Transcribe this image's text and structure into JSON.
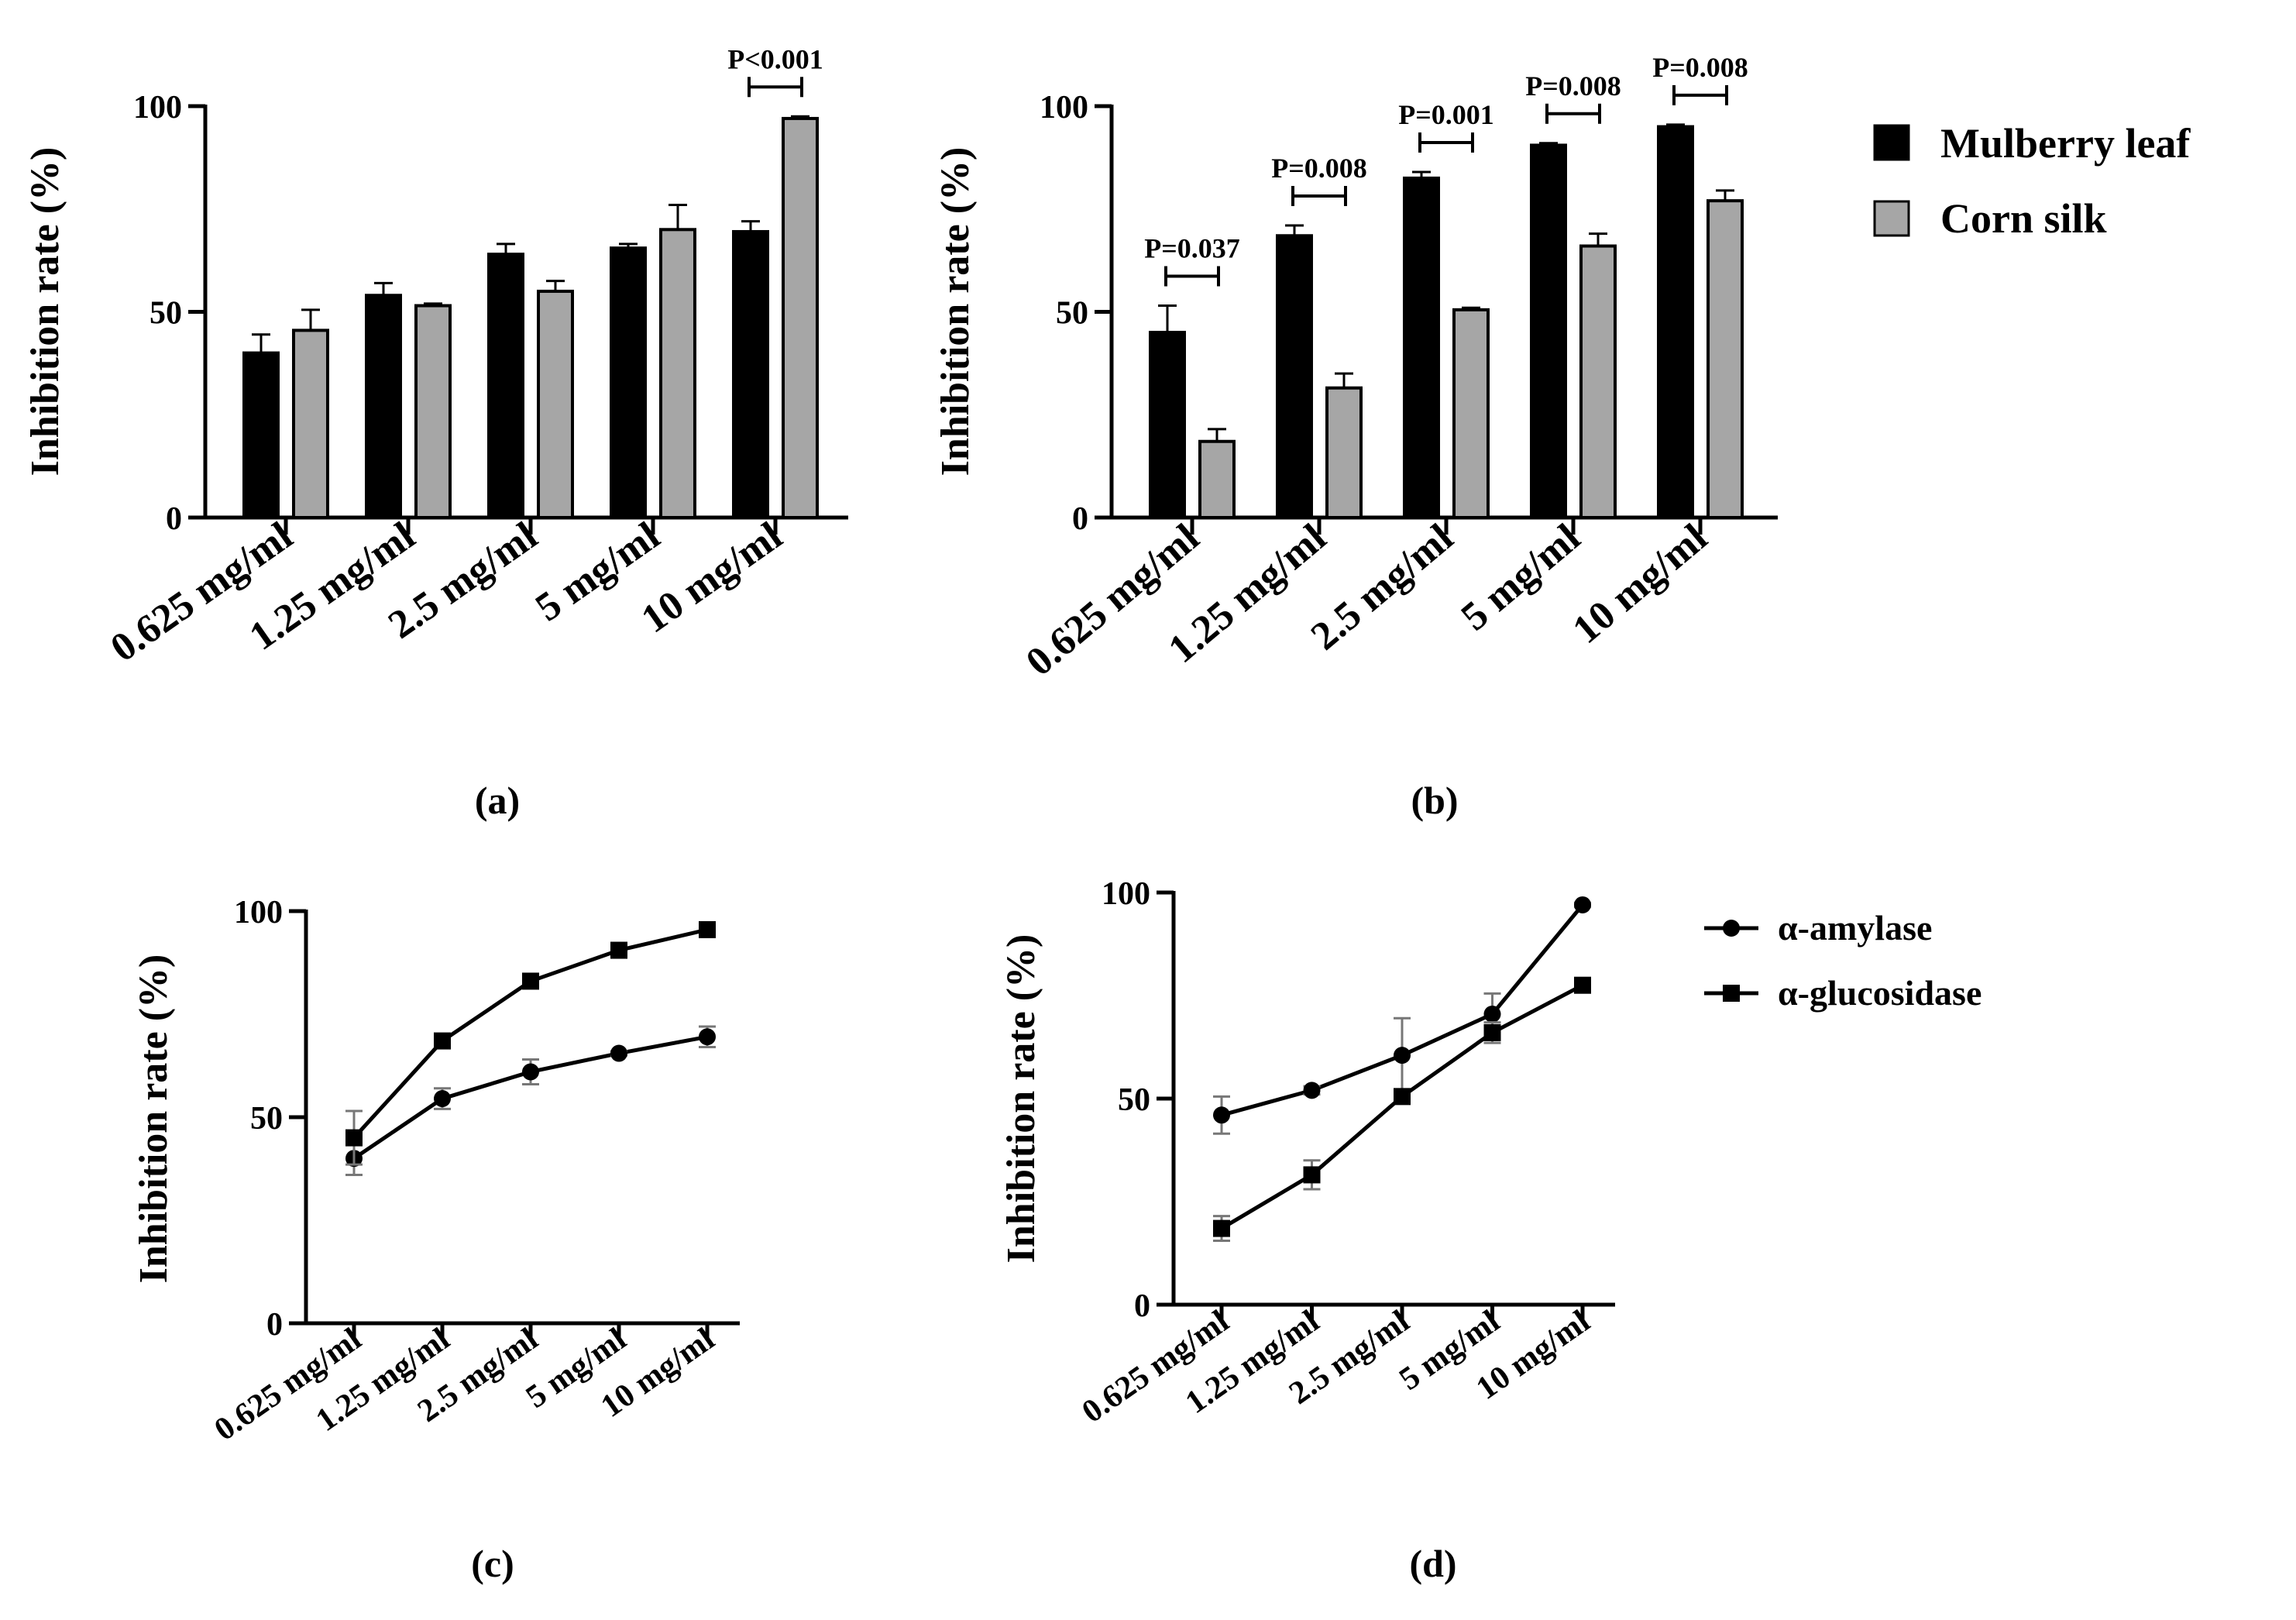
{
  "colors": {
    "mulberry": "#000000",
    "corn": "#a6a6a6",
    "axis": "#000000"
  },
  "legend_bars": {
    "items": [
      {
        "label": "Mulberry leaf",
        "color": "#000000"
      },
      {
        "label": "Corn silk",
        "color": "#a6a6a6"
      }
    ]
  },
  "legend_lines": {
    "items": [
      {
        "label": "α-amylase",
        "marker": "circle"
      },
      {
        "label": "α-glucosidase",
        "marker": "square"
      }
    ]
  },
  "chart_data": [
    {
      "id": "a",
      "type": "bar",
      "panel_label": "(a)",
      "ylabel": "Inhibition rate (%)",
      "ylim": [
        0,
        100
      ],
      "yticks": [
        0,
        50,
        100
      ],
      "categories": [
        "0.625 mg/ml",
        "1.25 mg/ml",
        "2.5 mg/ml",
        "5 mg/ml",
        "10 mg/ml"
      ],
      "series": [
        {
          "name": "Mulberry leaf",
          "values": [
            40,
            54,
            64,
            65.5,
            69.5
          ],
          "errors": [
            4.5,
            3,
            2.5,
            1,
            2.5
          ]
        },
        {
          "name": "Corn silk",
          "values": [
            45.5,
            51.5,
            55,
            70,
            97
          ],
          "errors": [
            5,
            0.5,
            2.5,
            6,
            0.5
          ]
        }
      ],
      "annotations": [
        {
          "category_index": 4,
          "text": "P<0.001"
        }
      ]
    },
    {
      "id": "b",
      "type": "bar",
      "panel_label": "(b)",
      "ylabel": "Inhibition rate (%)",
      "ylim": [
        0,
        100
      ],
      "yticks": [
        0,
        50,
        100
      ],
      "categories": [
        "0.625 mg/ml",
        "1.25 mg/ml",
        "2.5 mg/ml",
        "5 mg/ml",
        "10 mg/ml"
      ],
      "series": [
        {
          "name": "Mulberry leaf",
          "values": [
            45,
            68.5,
            82.5,
            90.5,
            95
          ],
          "errors": [
            6.5,
            2.5,
            1.5,
            0.5,
            0.5
          ]
        },
        {
          "name": "Corn silk",
          "values": [
            18.5,
            31.5,
            50.5,
            66,
            77
          ],
          "errors": [
            3,
            3.5,
            0.5,
            3,
            2.5
          ]
        }
      ],
      "annotations": [
        {
          "category_index": 0,
          "text": "P=0.037"
        },
        {
          "category_index": 1,
          "text": "P=0.008"
        },
        {
          "category_index": 2,
          "text": "P=0.001"
        },
        {
          "category_index": 3,
          "text": "P=0.008"
        },
        {
          "category_index": 4,
          "text": "P=0.008"
        }
      ]
    },
    {
      "id": "c",
      "type": "line",
      "panel_label": "(c)",
      "ylabel": "Inhibition rate (%)",
      "ylim": [
        0,
        100
      ],
      "yticks": [
        0,
        50,
        100
      ],
      "categories": [
        "0.625 mg/ml",
        "1.25 mg/ml",
        "2.5 mg/ml",
        "5 mg/ml",
        "10 mg/ml"
      ],
      "series": [
        {
          "name": "Mulberry leaf",
          "marker": "circle",
          "values": [
            40,
            54.5,
            61,
            65.5,
            69.5
          ],
          "errors": [
            4,
            2.5,
            3,
            0.5,
            2.5
          ]
        },
        {
          "name": "Corn silk",
          "marker": "square",
          "values": [
            45,
            68.5,
            83,
            90.5,
            95.5
          ],
          "errors": [
            6.5,
            1.5,
            1,
            0.5,
            0.5
          ]
        }
      ]
    },
    {
      "id": "d",
      "type": "line",
      "panel_label": "(d)",
      "ylabel": "Inhibition rate (%)",
      "ylim": [
        0,
        100
      ],
      "yticks": [
        0,
        50,
        100
      ],
      "categories": [
        "0.625 mg/ml",
        "1.25 mg/ml",
        "2.5 mg/ml",
        "5 mg/ml",
        "10 mg/ml"
      ],
      "series": [
        {
          "name": "α-amylase",
          "marker": "circle",
          "values": [
            46,
            52,
            60.5,
            70.5,
            97
          ],
          "errors": [
            4.5,
            1,
            9,
            5,
            0.5
          ]
        },
        {
          "name": "α-glucosidase",
          "marker": "square",
          "values": [
            18.5,
            31.5,
            50.5,
            66,
            77.5
          ],
          "errors": [
            3,
            3.5,
            0.5,
            2.5,
            1
          ]
        }
      ]
    }
  ]
}
